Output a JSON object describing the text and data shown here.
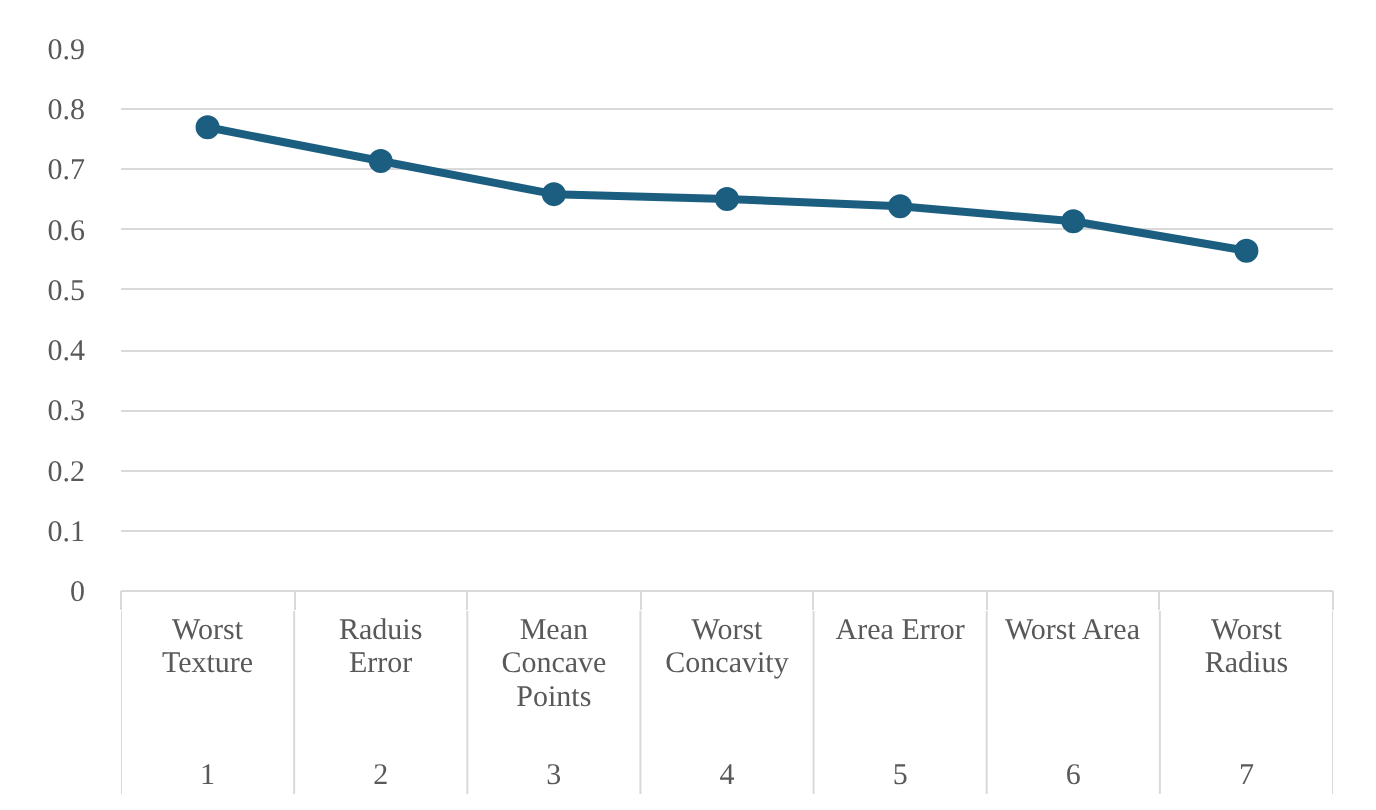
{
  "chart_data": {
    "type": "line",
    "categories": [
      "Worst Texture",
      "Raduis Error",
      "Mean Concave Points",
      "Worst Concavity",
      "Area Error",
      "Worst Area",
      "Worst Radius"
    ],
    "series": [
      {
        "color": "#1b5e80",
        "values": [
          0.77,
          0.714,
          0.659,
          0.651,
          0.639,
          0.614,
          0.565
        ]
      }
    ],
    "annotations": [
      "1",
      "2",
      "3",
      "4",
      "5",
      "6",
      "7"
    ],
    "ylim": [
      0,
      0.9
    ],
    "yticks": [
      0,
      0.1,
      0.2,
      0.3,
      0.4,
      0.5,
      0.6,
      0.7,
      0.8,
      0.9
    ],
    "grid": "y",
    "marker": "circle",
    "line_style": "solid"
  }
}
